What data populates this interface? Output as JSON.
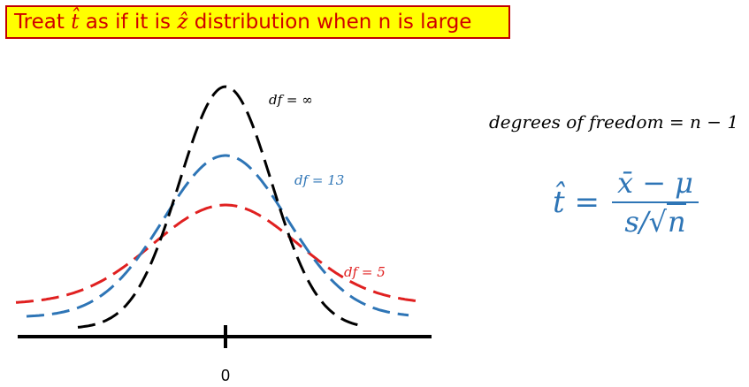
{
  "title": {
    "prefix": "Treat ",
    "t_hat": "t̂",
    "middle": " as if it is ",
    "z_hat": "ẑ",
    "suffix": " distribution when n is large"
  },
  "curves": [
    {
      "label": "df = ∞",
      "color": "#000000"
    },
    {
      "label": "df = 13",
      "color": "#2e75b6"
    },
    {
      "label": "df = 5",
      "color": "#e02020"
    }
  ],
  "axis": {
    "tick_label": "0"
  },
  "dof_text": "degrees of freedom = n − 1",
  "formula": {
    "lhs": "t̂ =",
    "numerator": "x̄ − μ",
    "denominator_s": "s/",
    "sqrt_sign": "√",
    "sqrt_content": "n"
  }
}
